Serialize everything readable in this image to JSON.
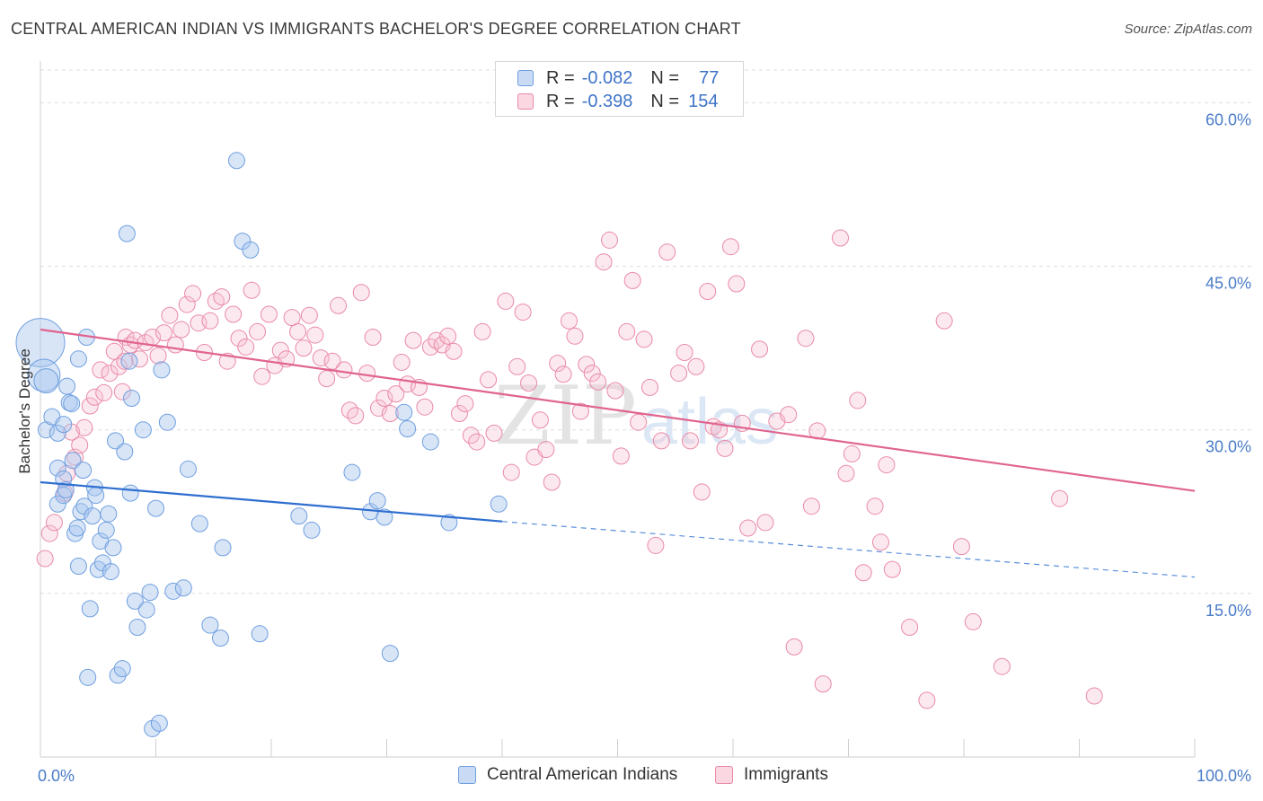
{
  "header": {
    "title": "CENTRAL AMERICAN INDIAN VS IMMIGRANTS BACHELOR'S DEGREE CORRELATION CHART",
    "source": "Source: ZipAtlas.com"
  },
  "watermark": {
    "zip": "ZIP",
    "atlas": "atlas"
  },
  "legend": {
    "r_label": "R =",
    "n_label": "N =",
    "rows": [
      {
        "r": "-0.082",
        "n": "77",
        "color": "#a9c6ee",
        "border": "#6f9fe0"
      },
      {
        "r": "-0.398",
        "n": "154",
        "color": "#f6bfd0",
        "border": "#e98aa8"
      }
    ]
  },
  "chart_data": {
    "type": "scatter",
    "title": "CENTRAL AMERICAN INDIAN VS IMMIGRANTS BACHELOR'S DEGREE CORRELATION CHART",
    "xlabel": "",
    "ylabel": "Bachelor's Degree",
    "xlim": [
      0,
      100
    ],
    "ylim": [
      0,
      63
    ],
    "x_tick_labels": [
      "0.0%",
      "100.0%"
    ],
    "y_ticks": [
      15,
      30,
      45,
      60
    ],
    "y_tick_labels": [
      "15.0%",
      "30.0%",
      "45.0%",
      "60.0%"
    ],
    "grid": "horizontal dashed",
    "legend_placement": "top-center",
    "series": [
      {
        "name": "Central American Indians",
        "color": "#6f9fe0",
        "fill": "rgba(169,198,238,0.45)",
        "trend": {
          "x0": 0,
          "y0": 25.2,
          "x1": 40,
          "y1": 21.6,
          "dash_to_x": 100,
          "dash_to_y": 16.5
        },
        "points": [
          [
            0,
            38,
            3
          ],
          [
            0.3,
            35,
            2
          ],
          [
            0.5,
            34.5,
            1.5
          ],
          [
            0.5,
            30,
            1
          ],
          [
            1,
            31.2,
            1
          ],
          [
            1.5,
            26.5,
            1
          ],
          [
            1.5,
            23.2,
            1
          ],
          [
            1.5,
            29.7,
            1
          ],
          [
            2,
            25.5,
            1
          ],
          [
            2,
            30.5,
            1
          ],
          [
            2,
            24,
            1
          ],
          [
            2.2,
            24.5,
            1
          ],
          [
            2.3,
            34,
            1
          ],
          [
            2.5,
            32.5,
            1
          ],
          [
            2.7,
            32.4,
            1
          ],
          [
            2.8,
            27.2,
            1
          ],
          [
            3,
            20.5,
            1
          ],
          [
            3.2,
            21,
            1
          ],
          [
            3.3,
            36.5,
            1
          ],
          [
            3.3,
            17.5,
            1
          ],
          [
            3.5,
            22.5,
            1
          ],
          [
            3.7,
            26.3,
            1
          ],
          [
            3.8,
            23,
            1
          ],
          [
            4,
            38.5,
            1
          ],
          [
            4.1,
            7.3,
            1
          ],
          [
            4.3,
            13.6,
            1
          ],
          [
            4.5,
            22.1,
            1
          ],
          [
            4.7,
            24.7,
            1
          ],
          [
            4.8,
            24,
            1
          ],
          [
            5,
            17.2,
            1
          ],
          [
            5.2,
            19.8,
            1
          ],
          [
            5.4,
            17.8,
            1
          ],
          [
            5.7,
            20.8,
            1
          ],
          [
            5.9,
            22.3,
            1
          ],
          [
            6.1,
            17,
            1
          ],
          [
            6.3,
            19.2,
            1
          ],
          [
            6.5,
            29,
            1
          ],
          [
            6.7,
            7.5,
            1
          ],
          [
            7.1,
            8.1,
            1
          ],
          [
            7.3,
            28,
            1
          ],
          [
            7.5,
            48,
            1
          ],
          [
            7.7,
            36.3,
            1
          ],
          [
            7.8,
            24.2,
            1
          ],
          [
            7.9,
            32.9,
            1
          ],
          [
            8.2,
            14.3,
            1
          ],
          [
            8.4,
            11.9,
            1
          ],
          [
            8.9,
            30,
            1
          ],
          [
            9.2,
            13.5,
            1
          ],
          [
            9.5,
            15.1,
            1
          ],
          [
            9.7,
            2.6,
            1
          ],
          [
            10.3,
            3.1,
            1
          ],
          [
            10.5,
            35.5,
            1
          ],
          [
            11,
            30.7,
            1
          ],
          [
            11.5,
            15.2,
            1
          ],
          [
            12.4,
            15.5,
            1
          ],
          [
            12.8,
            26.4,
            1
          ],
          [
            13.8,
            21.4,
            1
          ],
          [
            14.7,
            12.1,
            1
          ],
          [
            15.6,
            10.9,
            1
          ],
          [
            15.8,
            19.2,
            1
          ],
          [
            17,
            54.7,
            1
          ],
          [
            17.5,
            47.3,
            1
          ],
          [
            18.2,
            46.5,
            1
          ],
          [
            19,
            11.3,
            1
          ],
          [
            22.4,
            22.1,
            1
          ],
          [
            23.5,
            20.8,
            1
          ],
          [
            27,
            26.1,
            1
          ],
          [
            28.6,
            22.5,
            1
          ],
          [
            29.2,
            23.5,
            1
          ],
          [
            29.8,
            22,
            1
          ],
          [
            30.3,
            9.5,
            1
          ],
          [
            31.5,
            31.6,
            1
          ],
          [
            31.8,
            30.1,
            1
          ],
          [
            33.8,
            28.9,
            1
          ],
          [
            35.4,
            21.5,
            1
          ],
          [
            39.7,
            23.2,
            1
          ],
          [
            10,
            22.8,
            1
          ]
        ]
      },
      {
        "name": "Immigrants",
        "color": "#e98aa8",
        "fill": "rgba(246,191,208,0.35)",
        "trend": {
          "x0": 0,
          "y0": 39.2,
          "x1": 100,
          "y1": 24.4
        },
        "points": [
          [
            0.4,
            18.2
          ],
          [
            0.8,
            20.5
          ],
          [
            1.2,
            21.5
          ],
          [
            2.1,
            24.2
          ],
          [
            2.3,
            26
          ],
          [
            2.7,
            29.8
          ],
          [
            3,
            27.5
          ],
          [
            3.4,
            28.6
          ],
          [
            3.8,
            30.2
          ],
          [
            4.3,
            32.2
          ],
          [
            4.7,
            33
          ],
          [
            5.2,
            35.5
          ],
          [
            5.5,
            33.4
          ],
          [
            6,
            35.2
          ],
          [
            6.4,
            37.2
          ],
          [
            6.8,
            35.8
          ],
          [
            7.1,
            33.5
          ],
          [
            7.4,
            38.5
          ],
          [
            7.8,
            37.8
          ],
          [
            8.2,
            38.2
          ],
          [
            8.6,
            36.5
          ],
          [
            9.1,
            38
          ],
          [
            9.7,
            38.5
          ],
          [
            10.2,
            36.8
          ],
          [
            10.7,
            38.9
          ],
          [
            11.2,
            40.5
          ],
          [
            11.7,
            37.8
          ],
          [
            12.2,
            39.2
          ],
          [
            12.7,
            41.5
          ],
          [
            13.2,
            42.5
          ],
          [
            13.7,
            39.8
          ],
          [
            14.2,
            37.1
          ],
          [
            14.7,
            40
          ],
          [
            15.2,
            41.8
          ],
          [
            15.7,
            42.2
          ],
          [
            16.2,
            36.3
          ],
          [
            16.7,
            40.6
          ],
          [
            17.2,
            38.4
          ],
          [
            17.8,
            37.6
          ],
          [
            18.3,
            42.8
          ],
          [
            18.8,
            39
          ],
          [
            19.2,
            34.9
          ],
          [
            19.8,
            40.6
          ],
          [
            20.3,
            35.9
          ],
          [
            20.8,
            37.3
          ],
          [
            21.3,
            36.5
          ],
          [
            21.8,
            40.3
          ],
          [
            22.3,
            39
          ],
          [
            22.8,
            37.5
          ],
          [
            23.3,
            40.5
          ],
          [
            23.8,
            38.7
          ],
          [
            24.3,
            36.6
          ],
          [
            24.8,
            34.7
          ],
          [
            25.3,
            36.3
          ],
          [
            25.8,
            41.4
          ],
          [
            26.3,
            35.5
          ],
          [
            26.8,
            31.8
          ],
          [
            27.3,
            31.3
          ],
          [
            27.8,
            42.6
          ],
          [
            28.3,
            35.2
          ],
          [
            28.8,
            38.5
          ],
          [
            29.3,
            32
          ],
          [
            29.8,
            32.9
          ],
          [
            30.3,
            31.5
          ],
          [
            30.8,
            33.3
          ],
          [
            31.3,
            36.2
          ],
          [
            31.8,
            34.2
          ],
          [
            32.3,
            38.2
          ],
          [
            32.8,
            33.9
          ],
          [
            33.3,
            32.1
          ],
          [
            33.8,
            37.6
          ],
          [
            34.3,
            38.2
          ],
          [
            34.8,
            37.8
          ],
          [
            35.3,
            38.6
          ],
          [
            35.8,
            37.2
          ],
          [
            36.3,
            31.5
          ],
          [
            36.8,
            32.4
          ],
          [
            37.3,
            29.5
          ],
          [
            37.8,
            28.9
          ],
          [
            38.3,
            39
          ],
          [
            38.8,
            34.6
          ],
          [
            39.3,
            29.7
          ],
          [
            40.3,
            41.8
          ],
          [
            40.8,
            26.1
          ],
          [
            41.3,
            35.8
          ],
          [
            41.8,
            40.8
          ],
          [
            42.3,
            34.3
          ],
          [
            42.8,
            27.5
          ],
          [
            43.3,
            30.9
          ],
          [
            43.8,
            28.2
          ],
          [
            44.3,
            25.2
          ],
          [
            44.8,
            36.1
          ],
          [
            45.3,
            35.1
          ],
          [
            45.8,
            40
          ],
          [
            46.3,
            38.6
          ],
          [
            46.8,
            31.7
          ],
          [
            47.3,
            36
          ],
          [
            47.8,
            35.2
          ],
          [
            48.3,
            34.4
          ],
          [
            48.8,
            45.4
          ],
          [
            49.3,
            47.4
          ],
          [
            49.8,
            33.6
          ],
          [
            50.3,
            27.6
          ],
          [
            50.8,
            39
          ],
          [
            51.3,
            43.7
          ],
          [
            51.8,
            30.7
          ],
          [
            52.3,
            38.3
          ],
          [
            52.8,
            33.9
          ],
          [
            53.3,
            19.4
          ],
          [
            53.8,
            29
          ],
          [
            54.3,
            46.3
          ],
          [
            55.3,
            35.2
          ],
          [
            55.8,
            37.1
          ],
          [
            56.3,
            29
          ],
          [
            56.8,
            35.8
          ],
          [
            57.3,
            24.3
          ],
          [
            57.8,
            42.7
          ],
          [
            58.3,
            30.3
          ],
          [
            58.8,
            30
          ],
          [
            59.3,
            28.3
          ],
          [
            59.8,
            46.8
          ],
          [
            60.3,
            43.4
          ],
          [
            60.8,
            30.6
          ],
          [
            61.3,
            21
          ],
          [
            62.3,
            37.4
          ],
          [
            62.8,
            21.5
          ],
          [
            63.8,
            30.8
          ],
          [
            64.8,
            31.4
          ],
          [
            65.3,
            10.1
          ],
          [
            66.3,
            38.4
          ],
          [
            66.8,
            23
          ],
          [
            67.3,
            29.9
          ],
          [
            67.8,
            6.7
          ],
          [
            69.3,
            47.6
          ],
          [
            69.8,
            26
          ],
          [
            70.3,
            27.8
          ],
          [
            70.8,
            32.7
          ],
          [
            71.3,
            16.9
          ],
          [
            72.3,
            23
          ],
          [
            72.8,
            19.7
          ],
          [
            73.3,
            26.8
          ],
          [
            73.8,
            17.2
          ],
          [
            75.3,
            11.9
          ],
          [
            76.8,
            5.2
          ],
          [
            78.3,
            40
          ],
          [
            79.8,
            19.3
          ],
          [
            80.8,
            12.4
          ],
          [
            83.3,
            8.3
          ],
          [
            88.3,
            23.7
          ],
          [
            91.3,
            5.6
          ],
          [
            7.3,
            36.3
          ]
        ]
      }
    ]
  }
}
